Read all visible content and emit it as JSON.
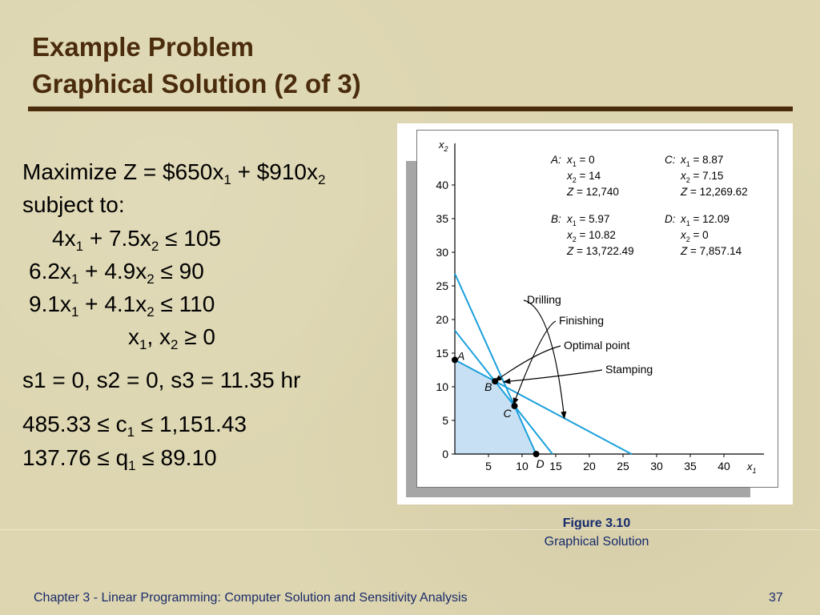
{
  "title": {
    "line1": "Example Problem",
    "line2": "Graphical Solution (2 of 3)"
  },
  "model": {
    "objective": {
      "prefix": "Maximize Z = $650x",
      "sub1": "1",
      "mid": " + $910x",
      "sub2": "2"
    },
    "subject_to": "subject to:",
    "constraints": [
      {
        "a": "4x",
        "s1": "1",
        "b": " + 7.5x",
        "s2": "2",
        "rel": " ≤ 105"
      },
      {
        "a": "6.2x",
        "s1": "1",
        "b": " + 4.9x",
        "s2": "2",
        "rel": " ≤ 90"
      },
      {
        "a": "9.1x",
        "s1": "1",
        "b": " + 4.1x",
        "s2": "2",
        "rel": " ≤ 110"
      }
    ],
    "nonneg": {
      "a": "x",
      "s1": "1",
      "b": ", x",
      "s2": "2",
      "rel": " ≥ 0"
    }
  },
  "slack": "s1 = 0, s2 = 0, s3 = 11.35 hr",
  "ranges": [
    {
      "lo": "485.33 ≤ c",
      "sub": "1",
      "hi": " ≤ 1,151.43"
    },
    {
      "lo": "137.76 ≤ q",
      "sub": "1",
      "hi": " ≤ 89.10"
    }
  ],
  "figure": {
    "caption_title": "Figure 3.10",
    "caption_sub": "Graphical Solution"
  },
  "footer": {
    "chapter": "Chapter 3 - Linear Programming:  Computer Solution and Sensitivity Analysis",
    "page": "37"
  },
  "colors": {
    "title": "#4a2c0c",
    "line": "#1aa0dc",
    "fill": "#c8e0f4",
    "caption": "#152a6d"
  },
  "chart_data": {
    "type": "line",
    "xlabel": "x1",
    "ylabel": "x2",
    "xlim": [
      0,
      45
    ],
    "ylim": [
      0,
      45
    ],
    "xticks": [
      5,
      10,
      15,
      20,
      25,
      30,
      35,
      40
    ],
    "yticks": [
      0,
      5,
      10,
      15,
      20,
      25,
      30,
      35,
      40
    ],
    "lines": [
      {
        "name": "Drilling",
        "x": [
          0,
          26.25
        ],
        "y": [
          14,
          0
        ]
      },
      {
        "name": "Finishing",
        "x": [
          0,
          14.52
        ],
        "y": [
          18.37,
          0
        ]
      },
      {
        "name": "Stamping",
        "x": [
          0,
          12.09
        ],
        "y": [
          26.83,
          0
        ]
      }
    ],
    "feasible_region": [
      [
        0,
        0
      ],
      [
        0,
        14
      ],
      [
        5.97,
        10.82
      ],
      [
        8.87,
        7.15
      ],
      [
        12.09,
        0
      ]
    ],
    "points": [
      {
        "label": "A",
        "x": 0,
        "y": 14,
        "details": [
          "x1 = 0",
          "x2 = 14",
          "Z = 12,740"
        ]
      },
      {
        "label": "B",
        "x": 5.97,
        "y": 10.82,
        "details": [
          "x1 = 5.97",
          "x2 = 10.82",
          "Z = 13,722.49"
        ]
      },
      {
        "label": "C",
        "x": 8.87,
        "y": 7.15,
        "details": [
          "x1 = 8.87",
          "x2 = 7.15",
          "Z = 12,269.62"
        ]
      },
      {
        "label": "D",
        "x": 12.09,
        "y": 0,
        "details": [
          "x1 = 12.09",
          "x2 = 0",
          "Z = 7,857.14"
        ]
      }
    ],
    "annotations": [
      {
        "text": "Drilling",
        "target": "Drilling"
      },
      {
        "text": "Finishing",
        "target": "Finishing"
      },
      {
        "text": "Optimal point",
        "target": "B"
      },
      {
        "text": "Stamping",
        "target": "Stamping"
      }
    ]
  }
}
